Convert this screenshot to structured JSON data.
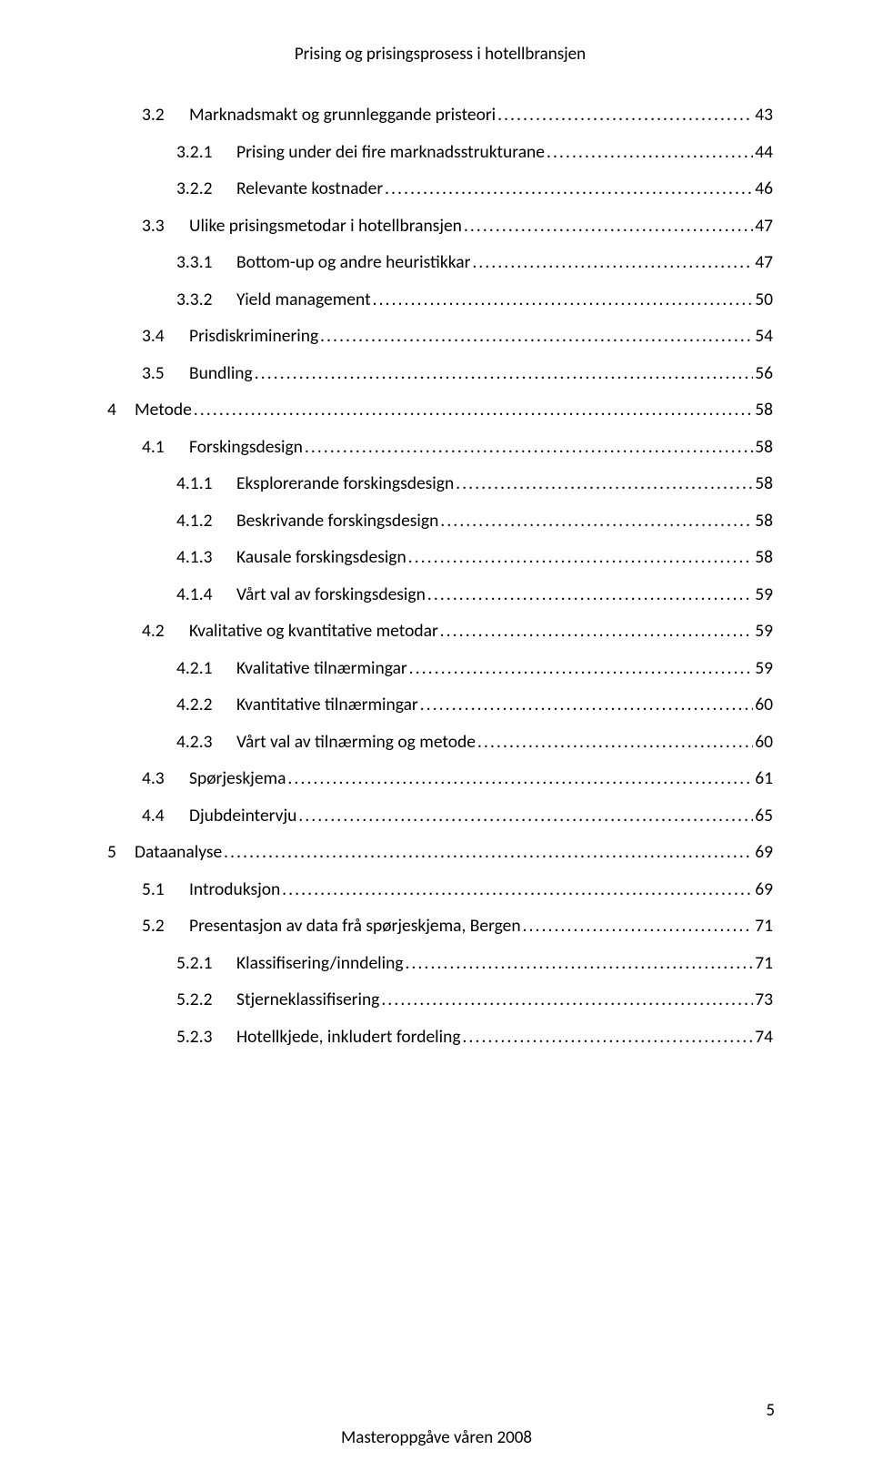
{
  "document": {
    "running_header": "Prising og prisingsprosess i hotellbransjen",
    "footer": "Masteroppgåve våren 2008",
    "page_number": "5"
  },
  "toc": {
    "entries": [
      {
        "level": 2,
        "number": "3.2",
        "title": "Marknadsmakt og grunnleggande pristeori",
        "page": "43"
      },
      {
        "level": 3,
        "number": "3.2.1",
        "title": "Prising under dei fire marknadsstrukturane",
        "page": "44"
      },
      {
        "level": 3,
        "number": "3.2.2",
        "title": "Relevante kostnader",
        "page": "46"
      },
      {
        "level": 2,
        "number": "3.3",
        "title": "Ulike prisingsmetodar i hotellbransjen",
        "page": "47"
      },
      {
        "level": 3,
        "number": "3.3.1",
        "title": "Bottom-up og andre heuristikkar",
        "page": "47"
      },
      {
        "level": 3,
        "number": "3.3.2",
        "title": "Yield management",
        "page": "50"
      },
      {
        "level": 2,
        "number": "3.4",
        "title": "Prisdiskriminering",
        "page": "54"
      },
      {
        "level": 2,
        "number": "3.5",
        "title": "Bundling",
        "page": "56"
      },
      {
        "level": 1,
        "number": "4",
        "title": "Metode",
        "page": "58"
      },
      {
        "level": 2,
        "number": "4.1",
        "title": "Forskingsdesign",
        "page": "58"
      },
      {
        "level": 3,
        "number": "4.1.1",
        "title": "Eksplorerande forskingsdesign",
        "page": "58"
      },
      {
        "level": 3,
        "number": "4.1.2",
        "title": "Beskrivande forskingsdesign",
        "page": "58"
      },
      {
        "level": 3,
        "number": "4.1.3",
        "title": "Kausale forskingsdesign",
        "page": "58"
      },
      {
        "level": 3,
        "number": "4.1.4",
        "title": "Vårt val av forskingsdesign",
        "page": "59"
      },
      {
        "level": 2,
        "number": "4.2",
        "title": "Kvalitative og kvantitative metodar",
        "page": "59"
      },
      {
        "level": 3,
        "number": "4.2.1",
        "title": "Kvalitative tilnærmingar",
        "page": "59"
      },
      {
        "level": 3,
        "number": "4.2.2",
        "title": "Kvantitative tilnærmingar",
        "page": "60"
      },
      {
        "level": 3,
        "number": "4.2.3",
        "title": "Vårt val av tilnærming og metode",
        "page": "60"
      },
      {
        "level": 2,
        "number": "4.3",
        "title": "Spørjeskjema",
        "page": "61"
      },
      {
        "level": 2,
        "number": "4.4",
        "title": "Djubdeintervju",
        "page": "65"
      },
      {
        "level": 1,
        "number": "5",
        "title": "Dataanalyse",
        "page": "69"
      },
      {
        "level": 2,
        "number": "5.1",
        "title": "Introduksjon",
        "page": "69"
      },
      {
        "level": 2,
        "number": "5.2",
        "title": "Presentasjon av data frå spørjeskjema, Bergen",
        "page": "71"
      },
      {
        "level": 3,
        "number": "5.2.1",
        "title": "Klassifisering/inndeling",
        "page": "71"
      },
      {
        "level": 3,
        "number": "5.2.2",
        "title": "Stjerneklassifisering",
        "page": "73"
      },
      {
        "level": 3,
        "number": "5.2.3",
        "title": "Hotellkjede, inkludert fordeling",
        "page": "74"
      }
    ]
  }
}
